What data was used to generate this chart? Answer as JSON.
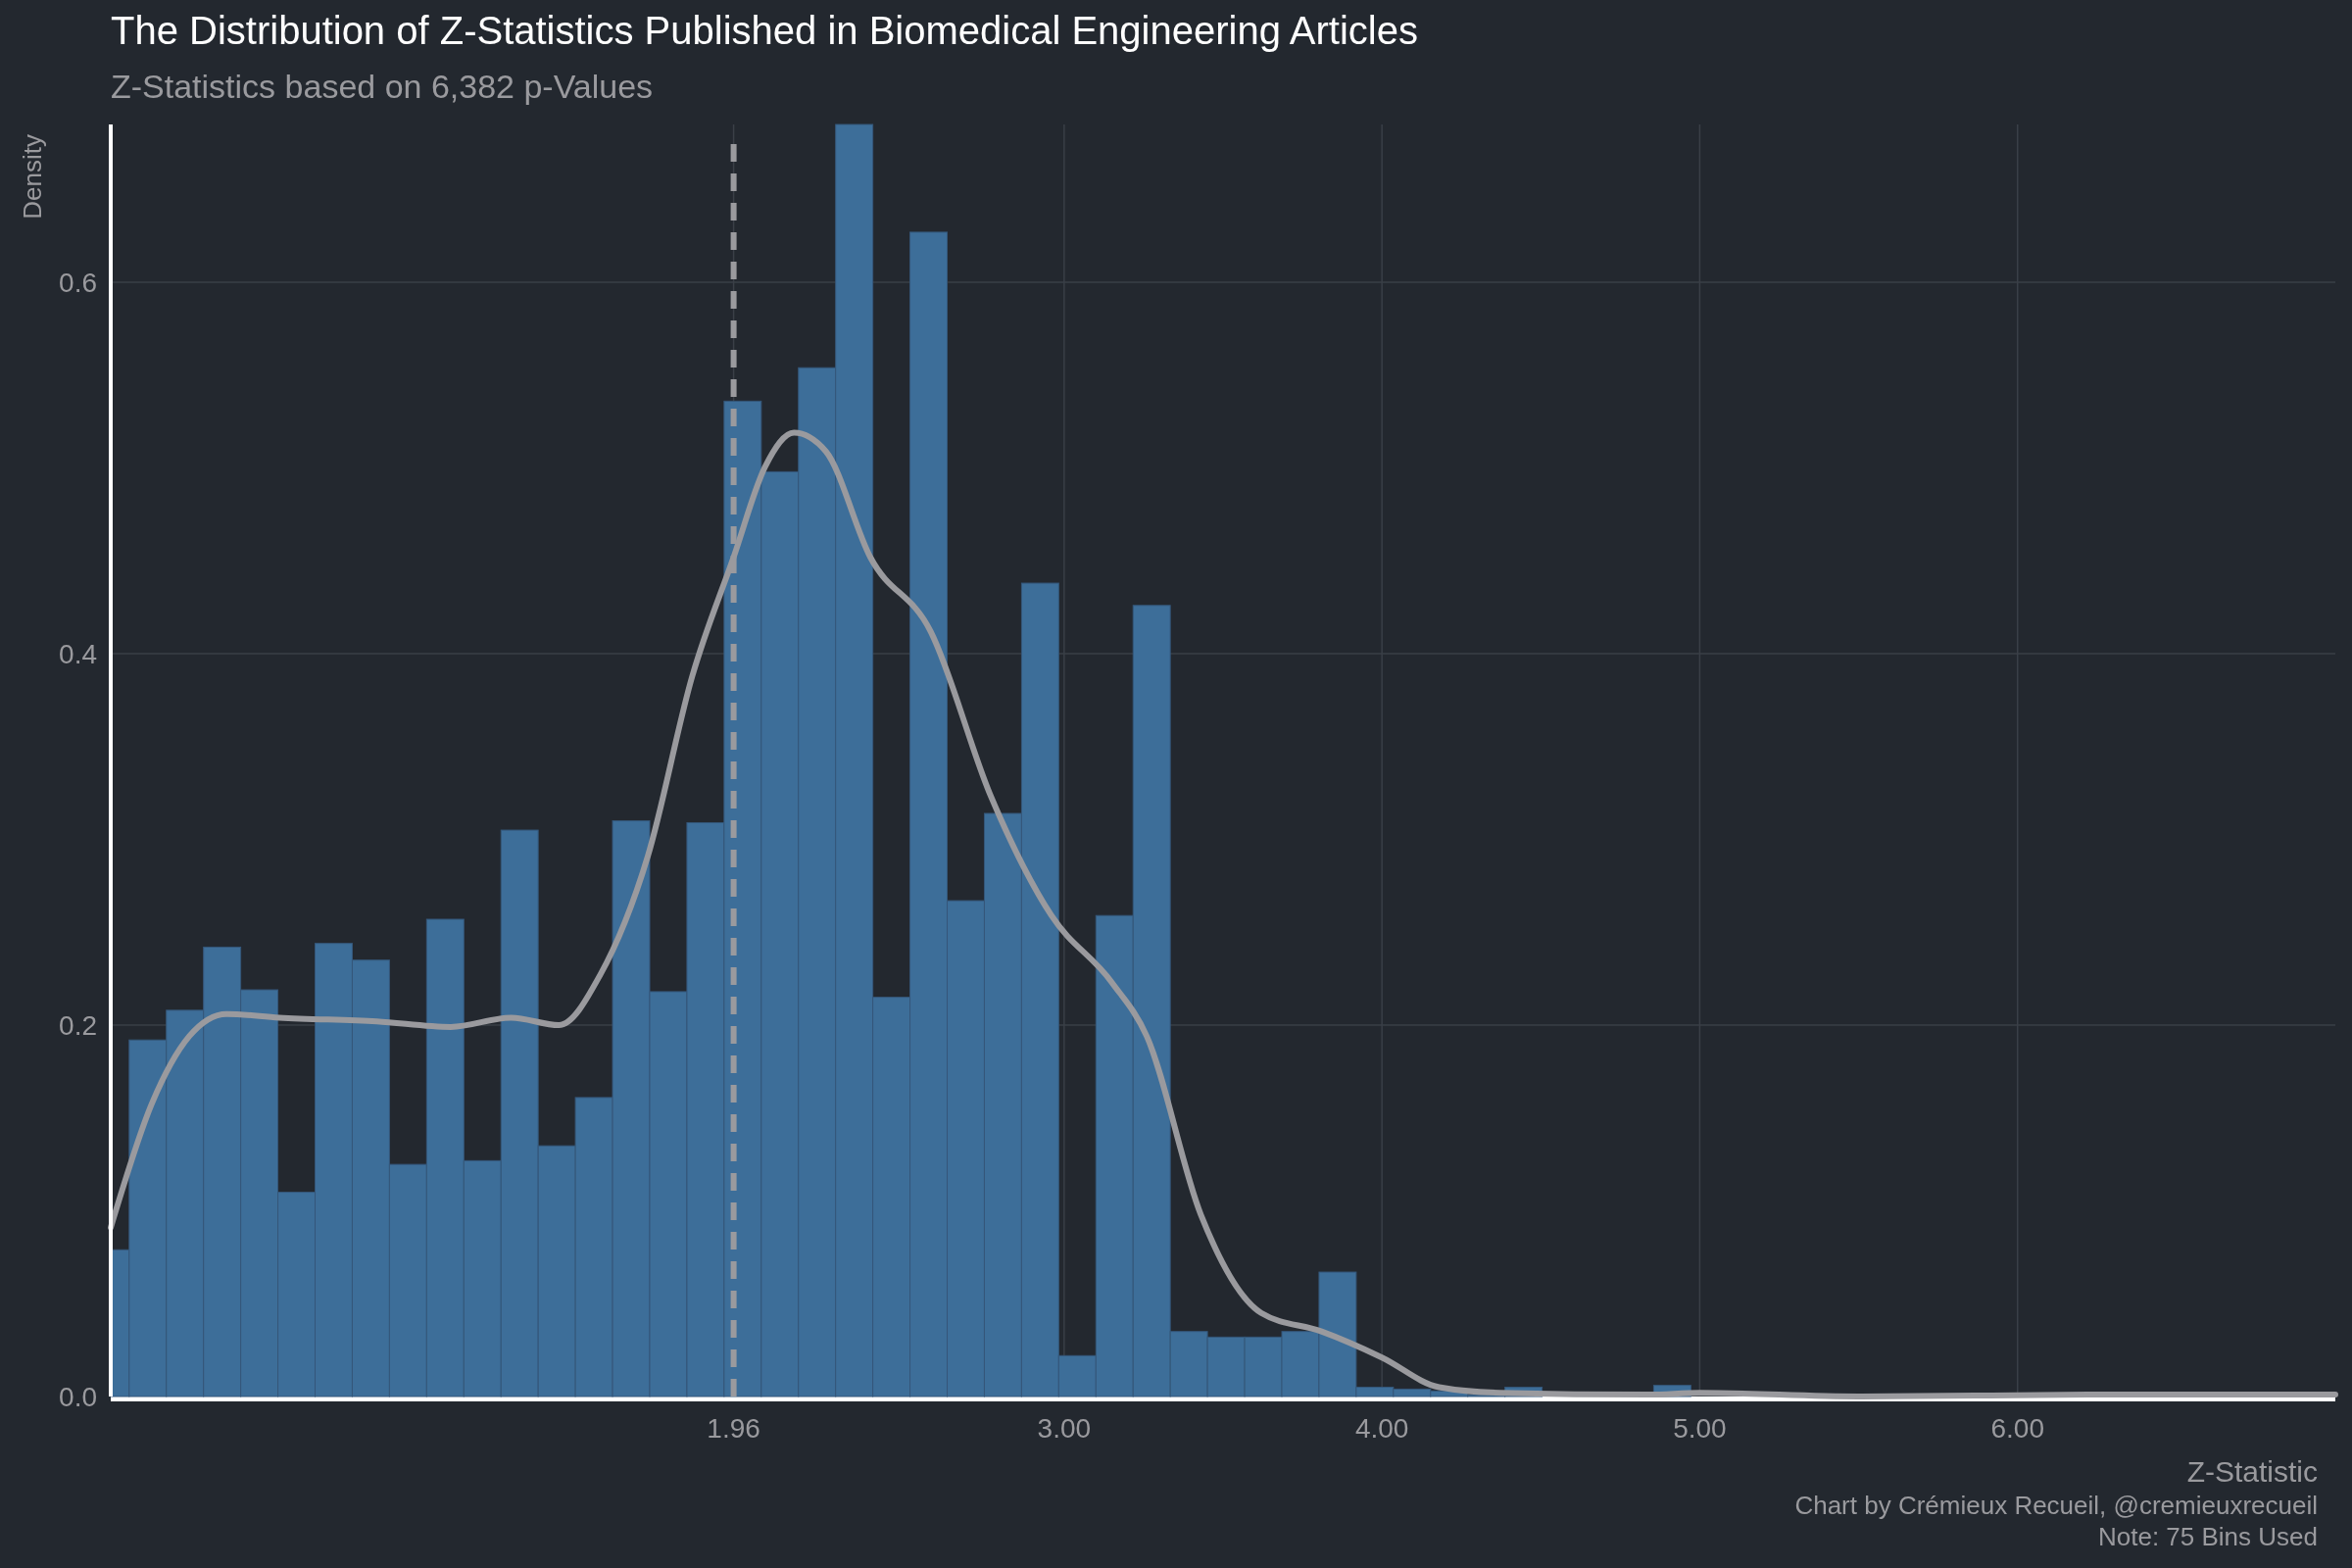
{
  "chart_data": {
    "type": "histogram",
    "title": "The Distribution of Z-Statistics Published in Biomedical Engineering Articles",
    "subtitle": "Z-Statistics based on 6,382 p-Values",
    "xlabel": "Z-Statistic",
    "ylabel": "Density",
    "annotations": [
      "Chart by Crémieux Recueil, @cremieuxrecueil",
      "Note: 75 Bins Used"
    ],
    "bins": [
      0,
      0.058,
      0.175,
      0.292,
      0.409,
      0.526,
      0.643,
      0.76,
      0.877,
      0.994,
      1.111,
      1.228,
      1.345,
      1.462,
      1.579,
      1.696,
      1.813,
      1.93,
      2.047,
      2.164,
      2.281,
      2.398,
      2.515,
      2.632,
      2.749,
      2.866,
      2.983,
      3.1,
      3.217,
      3.334,
      3.451,
      3.568,
      3.685,
      3.802,
      3.919,
      4.036,
      4.153,
      4.27,
      4.387,
      4.504,
      4.855,
      4.972
    ],
    "series": [
      {
        "type": "histogram",
        "color": "#3d6e99",
        "values": [
          0.079,
          0.192,
          0.208,
          0.242,
          0.219,
          0.11,
          0.244,
          0.235,
          0.125,
          0.257,
          0.127,
          0.305,
          0.135,
          0.161,
          0.31,
          0.218,
          0.309,
          0.536,
          0.498,
          0.554,
          0.685,
          0.215,
          0.627,
          0.267,
          0.314,
          0.438,
          0.022,
          0.259,
          0.426,
          0.035,
          0.032,
          0.032,
          0.035,
          0.067,
          0.005,
          0.004,
          0.003,
          0.001,
          0.005,
          0,
          0.006
        ]
      },
      {
        "type": "line",
        "color": "#9a9a9e",
        "x": [
          0,
          0.13,
          0.247,
          0.365,
          0.53,
          0.837,
          1.07,
          1.26,
          1.41,
          1.54,
          1.69,
          1.83,
          1.96,
          2.06,
          2.15,
          2.25,
          2.39,
          2.58,
          2.77,
          2.96,
          3.15,
          3.26,
          3.43,
          3.62,
          3.81,
          4.0,
          4.18,
          4.37,
          4.84,
          5.0,
          5.5,
          6.23,
          7.0
        ],
        "values": [
          0.091,
          0.158,
          0.194,
          0.206,
          0.204,
          0.202,
          0.199,
          0.204,
          0.2,
          0.227,
          0.291,
          0.388,
          0.452,
          0.501,
          0.519,
          0.509,
          0.452,
          0.412,
          0.323,
          0.259,
          0.223,
          0.194,
          0.098,
          0.045,
          0.035,
          0.021,
          0.005,
          0.002,
          0.001,
          0.002,
          0,
          0.001,
          0.001
        ]
      }
    ],
    "xlim": [
      0,
      7
    ],
    "xticks": [
      1.96,
      {
        "value": 3,
        "label": "3.00"
      },
      {
        "value": 4,
        "label": "4.00"
      },
      {
        "value": 5,
        "label": "5.00"
      },
      {
        "value": 6,
        "label": "6.00"
      }
    ],
    "ylim": [
      0,
      0.685
    ],
    "yticks": [
      {
        "value": 0,
        "label": "0.0"
      },
      0.2,
      0.4,
      0.6
    ],
    "grid": true,
    "ref_lines": [
      {
        "axis": "x",
        "value": 1.96,
        "color": "#9a9a9e",
        "line_style": "dashed"
      }
    ]
  }
}
